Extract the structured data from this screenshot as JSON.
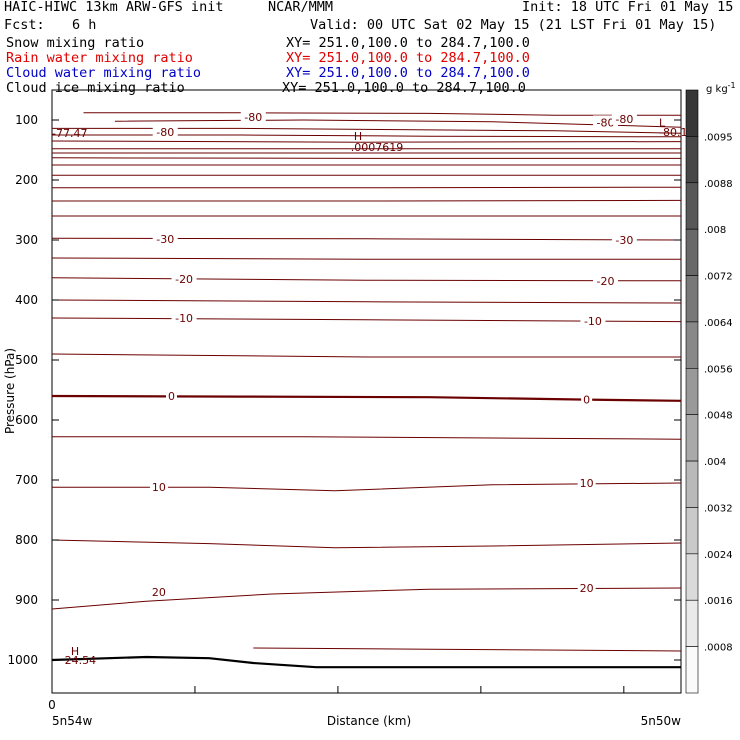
{
  "header": {
    "model": "HAIC-HIWC 13km ARW-GFS init",
    "org": "NCAR/MMM",
    "init": "Init: 18 UTC Fri 01 May 15",
    "fcst_label": "Fcst:",
    "fcst_value": "6 h",
    "valid": "Valid: 00 UTC Sat 02 May 15 (21 LST Fri 01 May 15)"
  },
  "fields": [
    {
      "name": "Snow mixing ratio",
      "xy": "XY= 251.0,100.0 to 284.7,100.0",
      "color": "#000000"
    },
    {
      "name": "Rain water mixing ratio",
      "xy": "XY= 251.0,100.0 to 284.7,100.0",
      "color": "#e00000"
    },
    {
      "name": "Cloud water mixing ratio",
      "xy": "XY= 251.0,100.0 to 284.7,100.0",
      "color": "#0000c8"
    },
    {
      "name": "Cloud ice mixing ratio",
      "xy": "XY= 251.0,100.0 to 284.7,100.0",
      "color": "#000000"
    }
  ],
  "chart_data": {
    "type": "contour",
    "ylabel": "Pressure (hPa)",
    "xlabel": "Distance (km)",
    "x_tick_zero": "0",
    "x_left_label": "5n54w",
    "x_right_label": "5n50w",
    "yticks": [
      100,
      200,
      300,
      400,
      500,
      600,
      700,
      800,
      900,
      1000
    ],
    "ylim": [
      50,
      1055
    ],
    "xlim": [
      0,
      100
    ],
    "colorbar": {
      "unit": "g kg",
      "unit_exp": "-1",
      "labels": [
        ".0095",
        ".0088",
        ".008",
        ".0072",
        ".0064",
        ".0056",
        ".0048",
        ".004",
        ".0032",
        ".0024",
        ".0016",
        ".0008"
      ]
    },
    "annotations": [
      {
        "text": "H",
        "x": 48,
        "p": 127
      },
      {
        "text": ".0007619",
        "x": 47.5,
        "p": 145
      },
      {
        "text": "L",
        "x": 96.5,
        "p": 104
      },
      {
        "text": "-80.1",
        "x": 96.5,
        "p": 120
      },
      {
        "text": "-77.47",
        "x": 0,
        "p": 122
      },
      {
        "text": "H",
        "x": 3,
        "p": 985
      },
      {
        "text": "24.54",
        "x": 2,
        "p": 1000
      }
    ],
    "isotherm_labels": [
      {
        "text": "-80",
        "x": 32,
        "p": 95
      },
      {
        "text": "-80",
        "x": 18,
        "p": 120
      },
      {
        "text": "-80",
        "x": 88,
        "p": 104
      },
      {
        "text": "-80",
        "x": 91,
        "p": 98
      },
      {
        "text": "-30",
        "x": 18,
        "p": 298
      },
      {
        "text": "-30",
        "x": 91,
        "p": 300
      },
      {
        "text": "-20",
        "x": 21,
        "p": 365
      },
      {
        "text": "-20",
        "x": 88,
        "p": 368
      },
      {
        "text": "-10",
        "x": 21,
        "p": 430
      },
      {
        "text": "-10",
        "x": 86,
        "p": 435
      },
      {
        "text": "0",
        "x": 19,
        "p": 560
      },
      {
        "text": "0",
        "x": 85,
        "p": 566
      },
      {
        "text": "10",
        "x": 17,
        "p": 712
      },
      {
        "text": "10",
        "x": 85,
        "p": 705
      },
      {
        "text": "20",
        "x": 17,
        "p": 887
      },
      {
        "text": "20",
        "x": 85,
        "p": 880
      }
    ],
    "contours": [
      {
        "pts": [
          [
            5,
            88
          ],
          [
            30,
            88
          ],
          [
            60,
            89
          ],
          [
            80,
            92
          ],
          [
            100,
            92
          ]
        ]
      },
      {
        "pts": [
          [
            10,
            102
          ],
          [
            40,
            100
          ],
          [
            70,
            103
          ],
          [
            100,
            112
          ]
        ]
      },
      {
        "pts": [
          [
            0,
            114
          ],
          [
            30,
            114
          ],
          [
            55,
            116
          ],
          [
            80,
            118
          ],
          [
            100,
            122
          ]
        ]
      },
      {
        "pts": [
          [
            0,
            125
          ],
          [
            30,
            125
          ],
          [
            60,
            127
          ],
          [
            100,
            128
          ]
        ]
      },
      {
        "pts": [
          [
            0,
            135
          ],
          [
            50,
            137
          ],
          [
            100,
            136
          ]
        ]
      },
      {
        "pts": [
          [
            0,
            148
          ],
          [
            50,
            148
          ],
          [
            100,
            148
          ]
        ]
      },
      {
        "pts": [
          [
            0,
            155
          ],
          [
            50,
            155
          ],
          [
            100,
            155
          ]
        ]
      },
      {
        "pts": [
          [
            0,
            163
          ],
          [
            50,
            164
          ],
          [
            100,
            164
          ]
        ]
      },
      {
        "pts": [
          [
            0,
            175
          ],
          [
            50,
            175
          ],
          [
            100,
            175
          ]
        ]
      },
      {
        "pts": [
          [
            0,
            192
          ],
          [
            50,
            192
          ],
          [
            100,
            192
          ]
        ]
      },
      {
        "pts": [
          [
            0,
            213
          ],
          [
            50,
            213
          ],
          [
            100,
            212
          ]
        ]
      },
      {
        "pts": [
          [
            0,
            235
          ],
          [
            50,
            235
          ],
          [
            100,
            234
          ]
        ]
      },
      {
        "pts": [
          [
            0,
            260
          ],
          [
            50,
            260
          ],
          [
            100,
            260
          ]
        ]
      },
      {
        "pts": [
          [
            0,
            297
          ],
          [
            50,
            298
          ],
          [
            100,
            300
          ]
        ]
      },
      {
        "pts": [
          [
            0,
            330
          ],
          [
            50,
            332
          ],
          [
            100,
            332
          ]
        ]
      },
      {
        "pts": [
          [
            0,
            363
          ],
          [
            50,
            367
          ],
          [
            100,
            368
          ]
        ]
      },
      {
        "pts": [
          [
            0,
            400
          ],
          [
            50,
            403
          ],
          [
            100,
            405
          ]
        ]
      },
      {
        "pts": [
          [
            0,
            430
          ],
          [
            50,
            433
          ],
          [
            100,
            436
          ]
        ]
      },
      {
        "pts": [
          [
            0,
            490
          ],
          [
            50,
            495
          ],
          [
            100,
            495
          ]
        ]
      },
      {
        "pts": [
          [
            0,
            560
          ],
          [
            30,
            561
          ],
          [
            60,
            562
          ],
          [
            85,
            566
          ],
          [
            100,
            568
          ]
        ],
        "bold": true
      },
      {
        "pts": [
          [
            0,
            628
          ],
          [
            40,
            628
          ],
          [
            70,
            630
          ],
          [
            100,
            632
          ]
        ]
      },
      {
        "pts": [
          [
            0,
            712
          ],
          [
            25,
            712
          ],
          [
            45,
            718
          ],
          [
            70,
            708
          ],
          [
            100,
            705
          ]
        ]
      },
      {
        "pts": [
          [
            0,
            800
          ],
          [
            25,
            806
          ],
          [
            45,
            813
          ],
          [
            70,
            810
          ],
          [
            100,
            805
          ]
        ]
      },
      {
        "pts": [
          [
            0,
            915
          ],
          [
            15,
            902
          ],
          [
            35,
            890
          ],
          [
            60,
            882
          ],
          [
            100,
            880
          ]
        ]
      },
      {
        "pts": [
          [
            32,
            980
          ],
          [
            60,
            982
          ],
          [
            100,
            985
          ]
        ]
      }
    ],
    "terrain": [
      [
        0,
        1000
      ],
      [
        15,
        995
      ],
      [
        25,
        997
      ],
      [
        32,
        1005
      ],
      [
        42,
        1012
      ],
      [
        60,
        1012
      ],
      [
        100,
        1012
      ]
    ]
  }
}
